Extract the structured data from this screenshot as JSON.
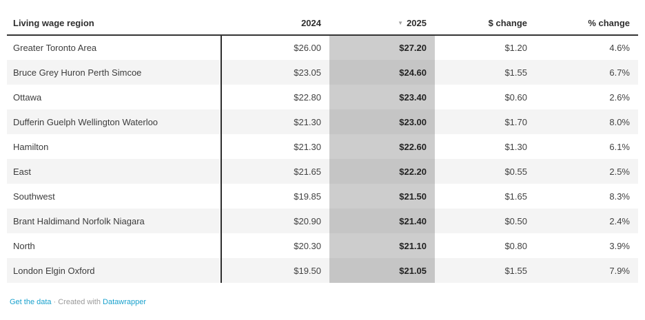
{
  "chart_data": {
    "type": "table",
    "columns": [
      "Living wage region",
      "2024",
      "2025",
      "$ change",
      "% change"
    ],
    "sorted_by": "2025",
    "sort_direction": "descending",
    "rows": [
      {
        "region": "Greater Toronto Area",
        "y2024": "$26.00",
        "y2025": "$27.20",
        "dollar_change": "$1.20",
        "pct_change": "4.6%"
      },
      {
        "region": "Bruce Grey Huron Perth Simcoe",
        "y2024": "$23.05",
        "y2025": "$24.60",
        "dollar_change": "$1.55",
        "pct_change": "6.7%"
      },
      {
        "region": "Ottawa",
        "y2024": "$22.80",
        "y2025": "$23.40",
        "dollar_change": "$0.60",
        "pct_change": "2.6%"
      },
      {
        "region": "Dufferin Guelph Wellington Waterloo",
        "y2024": "$21.30",
        "y2025": "$23.00",
        "dollar_change": "$1.70",
        "pct_change": "8.0%"
      },
      {
        "region": "Hamilton",
        "y2024": "$21.30",
        "y2025": "$22.60",
        "dollar_change": "$1.30",
        "pct_change": "6.1%"
      },
      {
        "region": "East",
        "y2024": "$21.65",
        "y2025": "$22.20",
        "dollar_change": "$0.55",
        "pct_change": "2.5%"
      },
      {
        "region": "Southwest",
        "y2024": "$19.85",
        "y2025": "$21.50",
        "dollar_change": "$1.65",
        "pct_change": "8.3%"
      },
      {
        "region": "Brant Haldimand Norfolk Niagara",
        "y2024": "$20.90",
        "y2025": "$21.40",
        "dollar_change": "$0.50",
        "pct_change": "2.4%"
      },
      {
        "region": "North",
        "y2024": "$20.30",
        "y2025": "$21.10",
        "dollar_change": "$0.80",
        "pct_change": "3.9%"
      },
      {
        "region": "London Elgin Oxford",
        "y2024": "$19.50",
        "y2025": "$21.05",
        "dollar_change": "$1.55",
        "pct_change": "7.9%"
      }
    ]
  },
  "icons": {
    "sort_desc": "▼"
  },
  "footer": {
    "get_data_label": "Get the data",
    "separator": "·",
    "created_with": "Created with",
    "brand": "Datawrapper"
  },
  "colors": {
    "highlight_column": "#cdcdcd",
    "highlight_column_striped": "#c5c5c5",
    "row_stripe": "#f4f4f4",
    "header_rule": "#333333",
    "column_divider": "#2d2d2d",
    "link_blue": "#18a1cd",
    "header_text": "#2e2e2e",
    "cell_text": "#414141"
  }
}
